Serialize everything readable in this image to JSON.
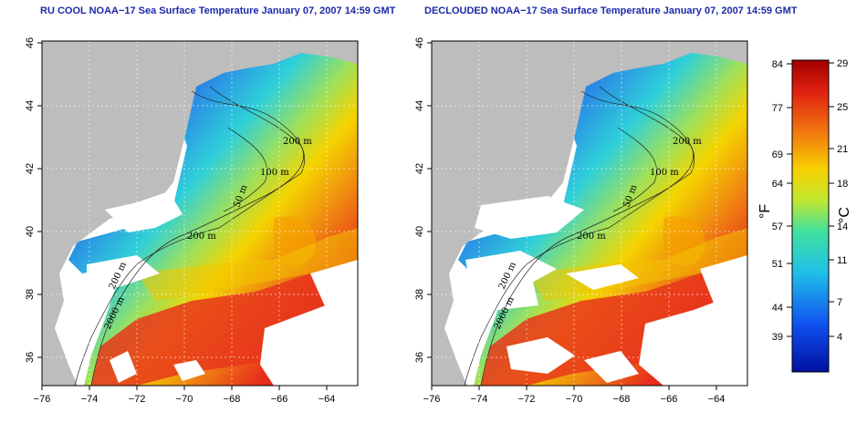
{
  "left_map": {
    "title": "RU COOL NOAA−17 Sea Surface Temperature January 07, 2007 14:59 GMT",
    "contour_labels": [
      "200 m",
      "100 m",
      "50 m",
      "200 m",
      "200 m",
      "2000 m"
    ]
  },
  "right_map": {
    "title": "DECLOUDED NOAA−17 Sea Surface Temperature January 07, 2007 14:59 GMT",
    "contour_labels": [
      "200 m",
      "100 m",
      "50 m",
      "200 m",
      "200 m",
      "2000 m"
    ]
  },
  "axes": {
    "x_ticks": [
      "−76",
      "−74",
      "−72",
      "−70",
      "−68",
      "−66",
      "−64"
    ],
    "y_ticks": [
      "46",
      "44",
      "42",
      "40",
      "38",
      "36"
    ]
  },
  "colorbar": {
    "fahrenheit_unit": "°F",
    "celsius_unit": "°C",
    "fahrenheit_ticks": [
      "84",
      "77",
      "69",
      "64",
      "57",
      "51",
      "44",
      "39"
    ],
    "celsius_ticks": [
      "29",
      "25",
      "21",
      "18",
      "14",
      "11",
      "7",
      "4"
    ]
  },
  "colors": {
    "land": "#bdbdbd",
    "cloud": "#ffffff",
    "cold": "#1a4fd8",
    "mid": "#27c6d6",
    "warm": "#f5c400",
    "hot": "#e8261c"
  }
}
